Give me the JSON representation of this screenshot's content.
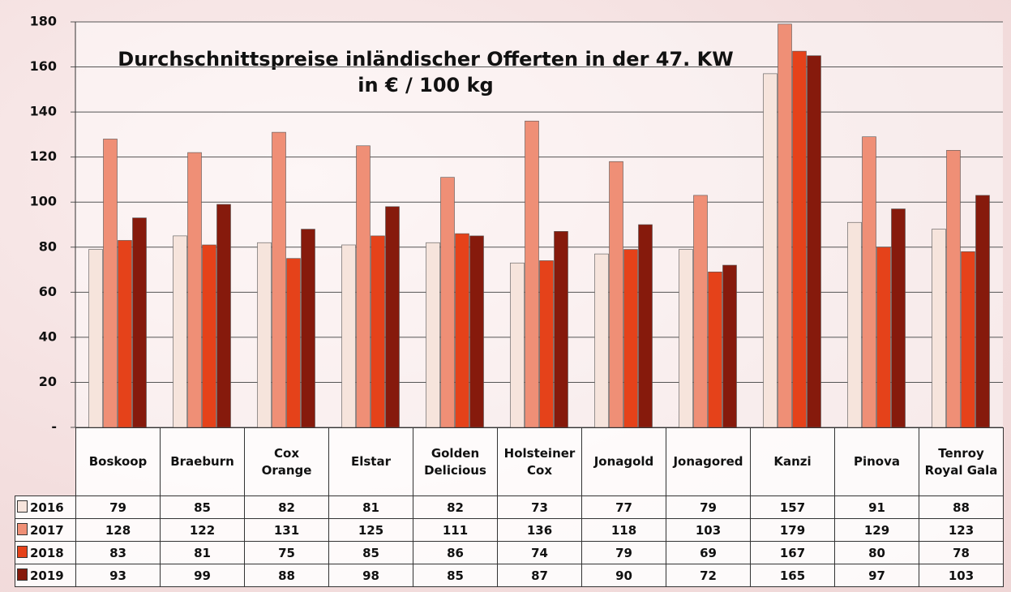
{
  "chart_data": {
    "type": "bar",
    "title": "Durchschnittspreise inländischer Offerten in der 47. KW",
    "subtitle": "in € / 100 kg",
    "categories": [
      "Boskoop",
      "Braeburn",
      "Cox Orange",
      "Elstar",
      "Golden Delicious",
      "Holsteiner Cox",
      "Jonagold",
      "Jonagored",
      "Kanzi",
      "Pinova",
      "Tenroy Royal Gala"
    ],
    "series": [
      {
        "name": "2016",
        "color": "#f6e4dc",
        "values": [
          79,
          85,
          82,
          81,
          82,
          73,
          77,
          79,
          157,
          91,
          88
        ]
      },
      {
        "name": "2017",
        "color": "#ef8f76",
        "values": [
          128,
          122,
          131,
          125,
          111,
          136,
          118,
          103,
          179,
          129,
          123
        ]
      },
      {
        "name": "2018",
        "color": "#e5421a",
        "values": [
          83,
          81,
          75,
          85,
          86,
          74,
          79,
          69,
          167,
          80,
          78
        ]
      },
      {
        "name": "2019",
        "color": "#861a0c",
        "values": [
          93,
          99,
          88,
          98,
          85,
          87,
          90,
          72,
          165,
          97,
          103
        ]
      }
    ],
    "ylim": [
      0,
      180
    ],
    "yticks": [
      {
        "value": 0,
        "label": "-"
      },
      20,
      40,
      60,
      80,
      100,
      120,
      140,
      160,
      180
    ],
    "grid": true
  }
}
